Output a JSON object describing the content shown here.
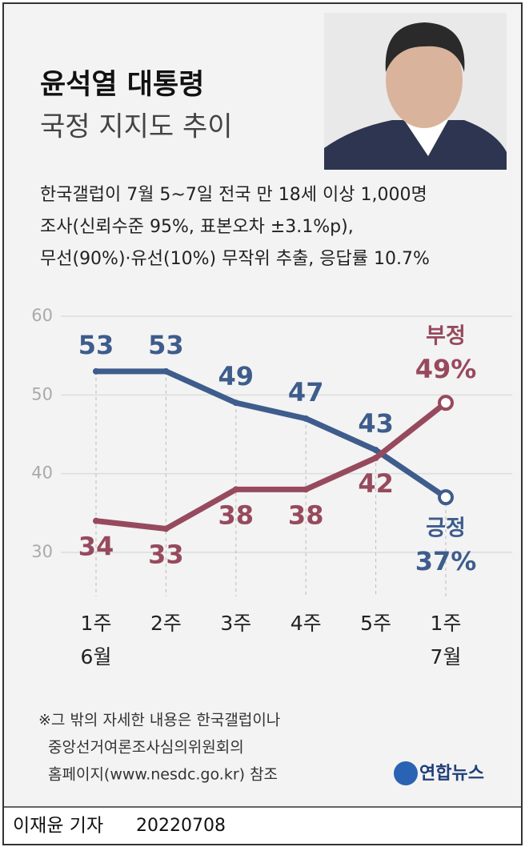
{
  "header": {
    "title": "윤석열 대통령",
    "subtitle": "국정 지지도 추이",
    "description": [
      "한국갤럽이 7월 5~7일 전국 만 18세 이상 1,000명",
      "조사(신뢰수준 95%, 표본오차 ±3.1%p),",
      "무선(90%)·유선(10%) 무작위 추출, 응답률 10.7%"
    ]
  },
  "chart_data": {
    "type": "line",
    "categories": [
      "1주",
      "2주",
      "3주",
      "4주",
      "5주",
      "1주"
    ],
    "month_labels": [
      "6월",
      null,
      null,
      null,
      null,
      "7월"
    ],
    "series": [
      {
        "name": "긍정",
        "color": "#3e5c8c",
        "values": [
          53,
          53,
          49,
          47,
          43,
          37
        ],
        "value_labels": [
          "53",
          "53",
          "49",
          "47",
          "43",
          "37%"
        ]
      },
      {
        "name": "부정",
        "color": "#974a5d",
        "values": [
          34,
          33,
          38,
          38,
          42,
          49
        ],
        "value_labels": [
          "34",
          "33",
          "38",
          "38",
          "42",
          "49%"
        ]
      }
    ],
    "ylim": [
      30,
      60
    ],
    "yticks": [
      30,
      40,
      50,
      60
    ],
    "grid": true
  },
  "footer": {
    "note": [
      "※그 밖의 자세한 내용은 한국갤럽이나",
      "중앙선거여론조사심의위원회의",
      "홈페이지(www.nesdc.go.kr) 참조"
    ],
    "logo": "연합뉴스",
    "author": "이재윤 기자",
    "date": "20220708"
  }
}
